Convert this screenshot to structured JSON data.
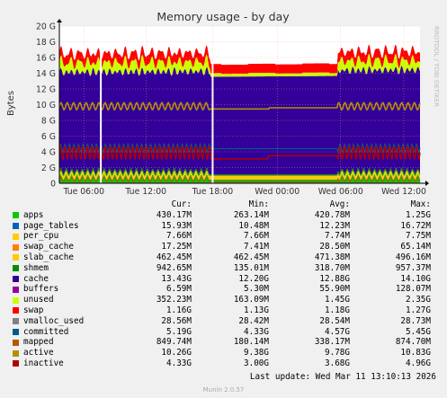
{
  "chart_data": {
    "type": "area",
    "title": "Memory usage - by day",
    "ylabel": "Bytes",
    "watermark": "RRDTOOL / TOBI OETIKER",
    "ylim": [
      0,
      20
    ],
    "y_unit": "G",
    "y_ticks": [
      "0",
      "2 G",
      "4 G",
      "6 G",
      "8 G",
      "10 G",
      "12 G",
      "14 G",
      "16 G",
      "18 G",
      "20 G"
    ],
    "x_ticks": [
      "Tue 06:00",
      "Tue 12:00",
      "Tue 18:00",
      "Wed 00:00",
      "Wed 06:00",
      "Wed 12:00"
    ],
    "stacked_levels_approx_G": {
      "apps": 0.42,
      "page_tables": 0.016,
      "per_cpu": 0.008,
      "swap_cache": 0.017,
      "slab_cache": 0.46,
      "shmem": 0.94,
      "cache": 13.4,
      "buffers": 0.007,
      "unused": 0.35,
      "swap": 1.16
    },
    "columns": [
      "Cur:",
      "Min:",
      "Avg:",
      "Max:"
    ],
    "series": [
      {
        "name": "apps",
        "color": "#00cc00",
        "cur": "430.17M",
        "min": "263.14M",
        "avg": "420.78M",
        "max": "1.25G"
      },
      {
        "name": "page_tables",
        "color": "#0066b3",
        "cur": "15.93M",
        "min": "10.48M",
        "avg": "12.23M",
        "max": "16.72M"
      },
      {
        "name": "per_cpu",
        "color": "#ffcc00",
        "cur": "7.66M",
        "min": "7.66M",
        "avg": "7.74M",
        "max": "7.75M"
      },
      {
        "name": "swap_cache",
        "color": "#ff8000",
        "cur": "17.25M",
        "min": "7.41M",
        "avg": "28.50M",
        "max": "65.14M"
      },
      {
        "name": "slab_cache",
        "color": "#ffcc00",
        "cur": "462.45M",
        "min": "462.45M",
        "avg": "471.38M",
        "max": "496.16M"
      },
      {
        "name": "shmem",
        "color": "#008f00",
        "cur": "942.65M",
        "min": "135.01M",
        "avg": "318.70M",
        "max": "957.37M"
      },
      {
        "name": "cache",
        "color": "#330099",
        "cur": "13.43G",
        "min": "12.20G",
        "avg": "12.88G",
        "max": "14.10G"
      },
      {
        "name": "buffers",
        "color": "#990099",
        "cur": "6.59M",
        "min": "5.30M",
        "avg": "55.90M",
        "max": "128.07M"
      },
      {
        "name": "unused",
        "color": "#ccff00",
        "cur": "352.23M",
        "min": "163.09M",
        "avg": "1.45G",
        "max": "2.35G"
      },
      {
        "name": "swap",
        "color": "#ff0000",
        "cur": "1.16G",
        "min": "1.13G",
        "avg": "1.18G",
        "max": "1.27G"
      },
      {
        "name": "vmalloc_used",
        "color": "#808080",
        "cur": "28.56M",
        "min": "28.42M",
        "avg": "28.54M",
        "max": "28.73M"
      },
      {
        "name": "committed",
        "color": "#005a8c",
        "cur": "5.19G",
        "min": "4.33G",
        "avg": "4.57G",
        "max": "5.45G"
      },
      {
        "name": "mapped",
        "color": "#b35a00",
        "cur": "849.74M",
        "min": "180.14M",
        "avg": "338.17M",
        "max": "874.70M"
      },
      {
        "name": "active",
        "color": "#b38f00",
        "cur": "10.26G",
        "min": "9.38G",
        "avg": "9.78G",
        "max": "10.83G"
      },
      {
        "name": "inactive",
        "color": "#b30000",
        "cur": "4.33G",
        "min": "3.00G",
        "avg": "3.68G",
        "max": "4.96G"
      }
    ]
  },
  "last_update": "Last update: Wed Mar 11 13:10:13 2026",
  "footer": "Munin 2.0.57"
}
